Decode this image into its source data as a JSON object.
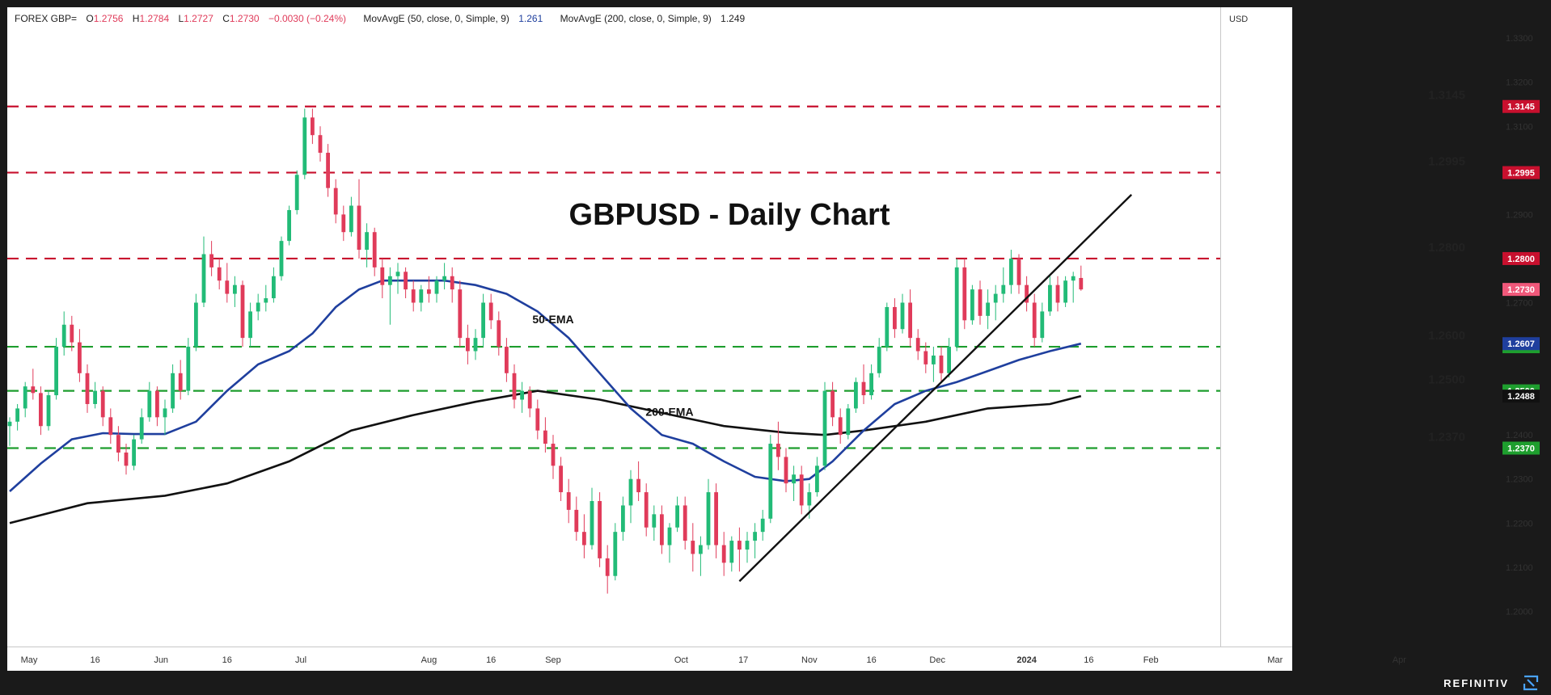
{
  "header": {
    "symbol": "FOREX GBP=",
    "o_label": "O",
    "o_value": "1.2756",
    "h_label": "H",
    "h_value": "1.2784",
    "l_label": "L",
    "l_value": "1.2727",
    "c_label": "C",
    "c_value": "1.2730",
    "change": "−0.0030 (−0.24%)",
    "ma50_label": "MovAvgE (50, close, 0, Simple, 9)",
    "ma50_value": "1.261",
    "ma200_label": "MovAvgE (200, close, 0, Simple, 9)",
    "ma200_value": "1.249"
  },
  "currency": "USD",
  "brand": "REFINITIV",
  "colors": {
    "up": "#22bb77",
    "down": "#e03b5a",
    "resistance": "#c8102e",
    "support": "#1e9e2e",
    "ema50": "#1f3f9e",
    "ema200": "#111111",
    "tag_red": "#c8102e",
    "tag_green": "#1e9e2e",
    "tag_blue": "#1f3f9e",
    "tag_black": "#111111",
    "tag_last": "#f0587a"
  },
  "chart_data": {
    "type": "candlestick",
    "title": "GBPUSD - Daily Chart",
    "ylim": [
      1.192,
      1.337
    ],
    "x_ticks": [
      "May",
      "16",
      "Jun",
      "16",
      "Jul",
      "Aug",
      "16",
      "Sep",
      "Oct",
      "17",
      "Nov",
      "16",
      "Dec",
      "2024",
      "16",
      "Feb",
      "Mar",
      "Apr"
    ],
    "y_ticks": [
      "1.3300",
      "1.3200",
      "1.3100",
      "1.3000",
      "1.2900",
      "1.2800",
      "1.2700",
      "1.2600",
      "1.2500",
      "1.2400",
      "1.2300",
      "1.2200",
      "1.2100",
      "1.2000"
    ],
    "levels": [
      {
        "label": "1.3145",
        "tag": "1.3145",
        "value": 1.3145,
        "kind": "resistance"
      },
      {
        "label": "1.2995",
        "tag": "1.2995",
        "value": 1.2995,
        "kind": "resistance"
      },
      {
        "label": "1.2800",
        "tag": "1.2800",
        "value": 1.28,
        "kind": "resistance"
      },
      {
        "label": "1.2600",
        "tag": "1.2600",
        "value": 1.26,
        "kind": "support"
      },
      {
        "label": "1.2500",
        "tag": "1.2500",
        "value": 1.25,
        "kind": "support"
      },
      {
        "label": "1.2370",
        "tag": "1.2370",
        "value": 1.237,
        "kind": "support"
      }
    ],
    "extra_tags": [
      {
        "text": "1.2730",
        "value": 1.273,
        "kind": "last"
      },
      {
        "text": "1.2607",
        "value": 1.2607,
        "kind": "ema50"
      },
      {
        "text": "1.2488",
        "value": 1.2488,
        "kind": "ema200"
      }
    ],
    "ema_labels": [
      {
        "text": "50-EMA",
        "bar": 140,
        "value": 1.2653
      },
      {
        "text": "200-EMA",
        "bar": 170,
        "value": 1.2443
      }
    ],
    "trendline": {
      "from_bar": 188,
      "from_value": 1.2068,
      "to_bar": 289,
      "to_value": 1.2945
    },
    "ema50": [
      [
        0,
        1.2272
      ],
      [
        8,
        1.2335
      ],
      [
        16,
        1.239
      ],
      [
        24,
        1.2404
      ],
      [
        32,
        1.2402
      ],
      [
        40,
        1.2402
      ],
      [
        48,
        1.243
      ],
      [
        56,
        1.25
      ],
      [
        64,
        1.256
      ],
      [
        72,
        1.259
      ],
      [
        78,
        1.263
      ],
      [
        84,
        1.269
      ],
      [
        90,
        1.273
      ],
      [
        96,
        1.275
      ],
      [
        104,
        1.275
      ],
      [
        112,
        1.275
      ],
      [
        120,
        1.274
      ],
      [
        128,
        1.272
      ],
      [
        136,
        1.268
      ],
      [
        144,
        1.262
      ],
      [
        152,
        1.254
      ],
      [
        160,
        1.246
      ],
      [
        168,
        1.24
      ],
      [
        176,
        1.238
      ],
      [
        184,
        1.234
      ],
      [
        192,
        1.2305
      ],
      [
        200,
        1.2295
      ],
      [
        206,
        1.23
      ],
      [
        212,
        1.234
      ],
      [
        220,
        1.241
      ],
      [
        228,
        1.247
      ],
      [
        236,
        1.25
      ],
      [
        244,
        1.252
      ],
      [
        252,
        1.2545
      ],
      [
        260,
        1.257
      ],
      [
        268,
        1.259
      ],
      [
        276,
        1.2607
      ]
    ],
    "ema200": [
      [
        0,
        1.22
      ],
      [
        20,
        1.2245
      ],
      [
        40,
        1.2262
      ],
      [
        56,
        1.229
      ],
      [
        72,
        1.234
      ],
      [
        88,
        1.241
      ],
      [
        104,
        1.2445
      ],
      [
        120,
        1.2475
      ],
      [
        136,
        1.25
      ],
      [
        152,
        1.248
      ],
      [
        168,
        1.245
      ],
      [
        184,
        1.242
      ],
      [
        200,
        1.2405
      ],
      [
        210,
        1.24
      ],
      [
        220,
        1.241
      ],
      [
        236,
        1.243
      ],
      [
        252,
        1.246
      ],
      [
        268,
        1.247
      ],
      [
        276,
        1.2488
      ]
    ],
    "candles": [
      [
        0,
        1.242,
        1.244,
        1.2375,
        1.243
      ],
      [
        2,
        1.243,
        1.247,
        1.241,
        1.246
      ],
      [
        4,
        1.246,
        1.252,
        1.244,
        1.251
      ],
      [
        6,
        1.251,
        1.255,
        1.248,
        1.2495
      ],
      [
        8,
        1.2495,
        1.251,
        1.24,
        1.242
      ],
      [
        10,
        1.242,
        1.25,
        1.241,
        1.249
      ],
      [
        12,
        1.249,
        1.262,
        1.248,
        1.26
      ],
      [
        14,
        1.26,
        1.268,
        1.258,
        1.265
      ],
      [
        16,
        1.265,
        1.267,
        1.259,
        1.261
      ],
      [
        18,
        1.261,
        1.264,
        1.252,
        1.254
      ],
      [
        20,
        1.254,
        1.256,
        1.245,
        1.247
      ],
      [
        22,
        1.247,
        1.252,
        1.246,
        1.25
      ],
      [
        24,
        1.25,
        1.251,
        1.242,
        1.244
      ],
      [
        26,
        1.244,
        1.246,
        1.238,
        1.24
      ],
      [
        28,
        1.24,
        1.242,
        1.234,
        1.236
      ],
      [
        30,
        1.236,
        1.238,
        1.231,
        1.233
      ],
      [
        32,
        1.233,
        1.24,
        1.232,
        1.239
      ],
      [
        34,
        1.239,
        1.246,
        1.238,
        1.244
      ],
      [
        36,
        1.244,
        1.252,
        1.243,
        1.25
      ],
      [
        38,
        1.25,
        1.251,
        1.242,
        1.244
      ],
      [
        40,
        1.244,
        1.248,
        1.24,
        1.246
      ],
      [
        42,
        1.246,
        1.256,
        1.245,
        1.254
      ],
      [
        44,
        1.254,
        1.257,
        1.248,
        1.25
      ],
      [
        46,
        1.25,
        1.262,
        1.249,
        1.26
      ],
      [
        48,
        1.26,
        1.272,
        1.259,
        1.27
      ],
      [
        50,
        1.27,
        1.285,
        1.269,
        1.281
      ],
      [
        52,
        1.281,
        1.284,
        1.276,
        1.278
      ],
      [
        54,
        1.278,
        1.28,
        1.273,
        1.275
      ],
      [
        56,
        1.275,
        1.279,
        1.27,
        1.272
      ],
      [
        58,
        1.272,
        1.276,
        1.269,
        1.274
      ],
      [
        60,
        1.274,
        1.275,
        1.26,
        1.262
      ],
      [
        62,
        1.262,
        1.27,
        1.26,
        1.268
      ],
      [
        64,
        1.268,
        1.272,
        1.266,
        1.27
      ],
      [
        66,
        1.27,
        1.274,
        1.268,
        1.271
      ],
      [
        68,
        1.271,
        1.278,
        1.27,
        1.276
      ],
      [
        70,
        1.276,
        1.285,
        1.275,
        1.284
      ],
      [
        72,
        1.284,
        1.292,
        1.283,
        1.291
      ],
      [
        74,
        1.291,
        1.3,
        1.29,
        1.299
      ],
      [
        76,
        1.299,
        1.314,
        1.298,
        1.312
      ],
      [
        78,
        1.312,
        1.314,
        1.306,
        1.308
      ],
      [
        80,
        1.308,
        1.31,
        1.302,
        1.304
      ],
      [
        82,
        1.304,
        1.306,
        1.294,
        1.296
      ],
      [
        84,
        1.296,
        1.298,
        1.288,
        1.29
      ],
      [
        86,
        1.29,
        1.292,
        1.284,
        1.286
      ],
      [
        88,
        1.286,
        1.294,
        1.285,
        1.292
      ],
      [
        90,
        1.292,
        1.298,
        1.28,
        1.282
      ],
      [
        92,
        1.282,
        1.288,
        1.278,
        1.286
      ],
      [
        94,
        1.286,
        1.287,
        1.276,
        1.278
      ],
      [
        96,
        1.278,
        1.28,
        1.271,
        1.274
      ],
      [
        98,
        1.274,
        1.278,
        1.265,
        1.276
      ],
      [
        100,
        1.276,
        1.279,
        1.272,
        1.277
      ],
      [
        102,
        1.277,
        1.278,
        1.271,
        1.273
      ],
      [
        104,
        1.273,
        1.275,
        1.268,
        1.27
      ],
      [
        106,
        1.27,
        1.274,
        1.268,
        1.273
      ],
      [
        108,
        1.273,
        1.276,
        1.27,
        1.272
      ],
      [
        110,
        1.272,
        1.276,
        1.27,
        1.275
      ],
      [
        112,
        1.275,
        1.279,
        1.273,
        1.276
      ],
      [
        114,
        1.276,
        1.278,
        1.27,
        1.273
      ],
      [
        116,
        1.273,
        1.275,
        1.26,
        1.262
      ],
      [
        118,
        1.262,
        1.265,
        1.256,
        1.259
      ],
      [
        120,
        1.259,
        1.264,
        1.257,
        1.262
      ],
      [
        122,
        1.262,
        1.272,
        1.26,
        1.27
      ],
      [
        124,
        1.27,
        1.272,
        1.264,
        1.266
      ],
      [
        126,
        1.266,
        1.268,
        1.258,
        1.26
      ],
      [
        128,
        1.26,
        1.262,
        1.252,
        1.254
      ],
      [
        130,
        1.254,
        1.256,
        1.246,
        1.248
      ],
      [
        132,
        1.248,
        1.252,
        1.245,
        1.25
      ],
      [
        134,
        1.25,
        1.251,
        1.244,
        1.246
      ],
      [
        136,
        1.246,
        1.248,
        1.239,
        1.241
      ],
      [
        138,
        1.241,
        1.244,
        1.236,
        1.238
      ],
      [
        140,
        1.238,
        1.24,
        1.23,
        1.233
      ],
      [
        142,
        1.233,
        1.235,
        1.225,
        1.227
      ],
      [
        144,
        1.227,
        1.23,
        1.22,
        1.223
      ],
      [
        146,
        1.223,
        1.226,
        1.216,
        1.218
      ],
      [
        148,
        1.218,
        1.222,
        1.212,
        1.215
      ],
      [
        150,
        1.215,
        1.228,
        1.214,
        1.225
      ],
      [
        152,
        1.225,
        1.227,
        1.21,
        1.212
      ],
      [
        154,
        1.212,
        1.215,
        1.204,
        1.208
      ],
      [
        156,
        1.208,
        1.22,
        1.207,
        1.218
      ],
      [
        158,
        1.218,
        1.226,
        1.216,
        1.224
      ],
      [
        160,
        1.224,
        1.232,
        1.22,
        1.23
      ],
      [
        162,
        1.23,
        1.234,
        1.225,
        1.227
      ],
      [
        164,
        1.227,
        1.229,
        1.217,
        1.219
      ],
      [
        166,
        1.219,
        1.224,
        1.216,
        1.222
      ],
      [
        168,
        1.222,
        1.224,
        1.213,
        1.215
      ],
      [
        170,
        1.215,
        1.22,
        1.211,
        1.219
      ],
      [
        172,
        1.219,
        1.226,
        1.218,
        1.224
      ],
      [
        174,
        1.224,
        1.226,
        1.214,
        1.216
      ],
      [
        176,
        1.216,
        1.22,
        1.209,
        1.213
      ],
      [
        178,
        1.213,
        1.217,
        1.208,
        1.215
      ],
      [
        180,
        1.215,
        1.23,
        1.214,
        1.227
      ],
      [
        182,
        1.227,
        1.229,
        1.212,
        1.215
      ],
      [
        184,
        1.215,
        1.218,
        1.208,
        1.211
      ],
      [
        186,
        1.211,
        1.217,
        1.209,
        1.216
      ],
      [
        188,
        1.216,
        1.219,
        1.209,
        1.214
      ],
      [
        190,
        1.214,
        1.218,
        1.211,
        1.216
      ],
      [
        192,
        1.216,
        1.22,
        1.212,
        1.218
      ],
      [
        194,
        1.218,
        1.223,
        1.216,
        1.221
      ],
      [
        196,
        1.221,
        1.24,
        1.22,
        1.238
      ],
      [
        198,
        1.238,
        1.243,
        1.232,
        1.235
      ],
      [
        200,
        1.235,
        1.237,
        1.227,
        1.229
      ],
      [
        202,
        1.229,
        1.233,
        1.225,
        1.231
      ],
      [
        204,
        1.231,
        1.233,
        1.222,
        1.224
      ],
      [
        206,
        1.224,
        1.229,
        1.221,
        1.227
      ],
      [
        208,
        1.227,
        1.235,
        1.226,
        1.233
      ],
      [
        210,
        1.233,
        1.252,
        1.232,
        1.25
      ],
      [
        212,
        1.25,
        1.252,
        1.242,
        1.244
      ],
      [
        214,
        1.244,
        1.246,
        1.238,
        1.24
      ],
      [
        216,
        1.24,
        1.247,
        1.239,
        1.246
      ],
      [
        218,
        1.246,
        1.253,
        1.245,
        1.252
      ],
      [
        220,
        1.252,
        1.256,
        1.247,
        1.249
      ],
      [
        222,
        1.249,
        1.256,
        1.248,
        1.254
      ],
      [
        224,
        1.254,
        1.262,
        1.253,
        1.26
      ],
      [
        226,
        1.26,
        1.27,
        1.259,
        1.269
      ],
      [
        228,
        1.269,
        1.271,
        1.262,
        1.264
      ],
      [
        230,
        1.264,
        1.272,
        1.263,
        1.27
      ],
      [
        232,
        1.27,
        1.273,
        1.26,
        1.262
      ],
      [
        234,
        1.262,
        1.264,
        1.257,
        1.259
      ],
      [
        236,
        1.259,
        1.261,
        1.254,
        1.256
      ],
      [
        238,
        1.256,
        1.26,
        1.252,
        1.258
      ],
      [
        240,
        1.258,
        1.26,
        1.252,
        1.254
      ],
      [
        242,
        1.254,
        1.262,
        1.253,
        1.26
      ],
      [
        244,
        1.26,
        1.28,
        1.259,
        1.278
      ],
      [
        246,
        1.278,
        1.28,
        1.264,
        1.266
      ],
      [
        248,
        1.266,
        1.274,
        1.265,
        1.273
      ],
      [
        250,
        1.273,
        1.275,
        1.265,
        1.267
      ],
      [
        252,
        1.267,
        1.273,
        1.264,
        1.27
      ],
      [
        254,
        1.27,
        1.274,
        1.266,
        1.272
      ],
      [
        256,
        1.272,
        1.278,
        1.27,
        1.274
      ],
      [
        258,
        1.274,
        1.282,
        1.272,
        1.28
      ],
      [
        260,
        1.28,
        1.281,
        1.272,
        1.274
      ],
      [
        262,
        1.274,
        1.276,
        1.268,
        1.27
      ],
      [
        264,
        1.27,
        1.272,
        1.26,
        1.262
      ],
      [
        266,
        1.262,
        1.27,
        1.261,
        1.268
      ],
      [
        268,
        1.268,
        1.276,
        1.267,
        1.274
      ],
      [
        270,
        1.274,
        1.276,
        1.268,
        1.27
      ],
      [
        272,
        1.27,
        1.276,
        1.269,
        1.275
      ],
      [
        274,
        1.275,
        1.277,
        1.27,
        1.276
      ],
      [
        276,
        1.2756,
        1.2784,
        1.2727,
        1.273
      ]
    ]
  }
}
